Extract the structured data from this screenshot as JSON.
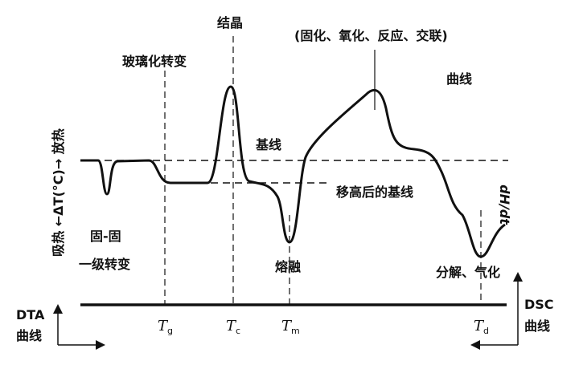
{
  "labels": {
    "crystallization": "结晶",
    "glass_transition": "玻璃化转变",
    "reactions": "(固化、氧化、反应、交联)",
    "curve": "曲线",
    "baseline": "基线",
    "shifted_baseline": "移高后的基线",
    "solid_solid": "固-固",
    "first_order": "一级转变",
    "melting": "熔融",
    "decomposition": "分解、气化",
    "y_axis_left": "吸热 ←ΔT(°C)→ 放热",
    "y_axis_right": "dH/dt",
    "dta": "DTA",
    "dta_curve": "曲线",
    "dsc": "DSC",
    "dsc_curve": "曲线"
  },
  "temperatures": [
    {
      "main": "T",
      "sub": "g"
    },
    {
      "main": "T",
      "sub": "c"
    },
    {
      "main": "T",
      "sub": "m"
    },
    {
      "main": "T",
      "sub": "d"
    }
  ],
  "colors": {
    "ink": "#111111",
    "background": "#ffffff"
  }
}
